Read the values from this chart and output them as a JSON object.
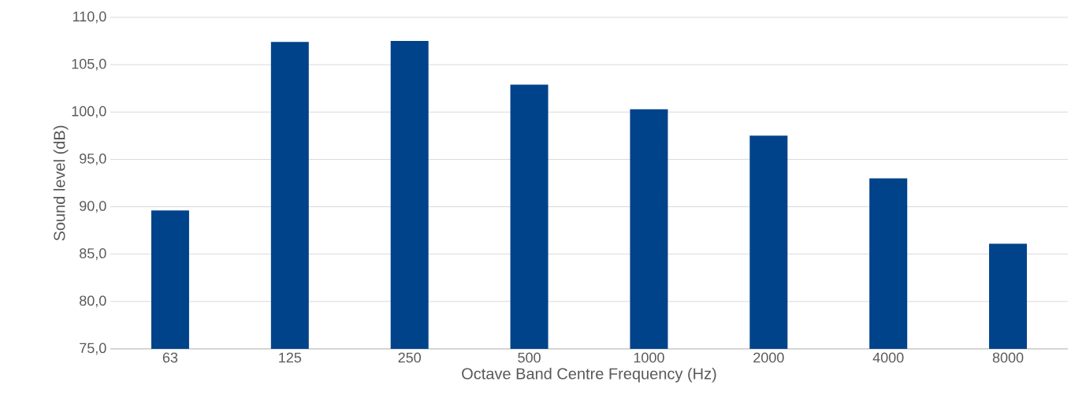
{
  "chart_data": {
    "type": "bar",
    "xlabel": "Octave Band Centre Frequency (Hz)",
    "ylabel": "Sound level (dB)",
    "categories": [
      "63",
      "125",
      "250",
      "500",
      "1000",
      "2000",
      "4000",
      "8000"
    ],
    "values": [
      89.6,
      107.4,
      107.5,
      102.9,
      100.3,
      97.5,
      93.0,
      86.1
    ],
    "color": "#00438a",
    "ylim": [
      75,
      110
    ],
    "yticks": [
      {
        "value": 75,
        "label": "75,0"
      },
      {
        "value": 80,
        "label": "80,0"
      },
      {
        "value": 85,
        "label": "85,0"
      },
      {
        "value": 90,
        "label": "90,0"
      },
      {
        "value": 95,
        "label": "95,0"
      },
      {
        "value": 100,
        "label": "100,0"
      },
      {
        "value": 105,
        "label": "105,0"
      },
      {
        "value": 110,
        "label": "110,0"
      }
    ],
    "grid": "y"
  }
}
